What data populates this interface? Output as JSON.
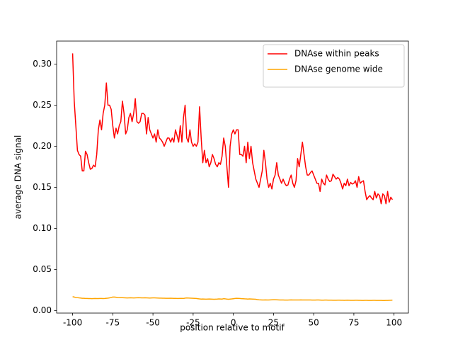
{
  "chart_data": {
    "type": "line",
    "xlabel": "position relative to motif",
    "ylabel": "average DNA signal",
    "x": [
      -100,
      -99,
      -98,
      -97,
      -96,
      -95,
      -94,
      -93,
      -92,
      -91,
      -90,
      -89,
      -88,
      -87,
      -86,
      -85,
      -84,
      -83,
      -82,
      -81,
      -80,
      -79,
      -78,
      -77,
      -76,
      -75,
      -74,
      -73,
      -72,
      -71,
      -70,
      -69,
      -68,
      -67,
      -66,
      -65,
      -64,
      -63,
      -62,
      -61,
      -60,
      -59,
      -58,
      -57,
      -56,
      -55,
      -54,
      -53,
      -52,
      -51,
      -50,
      -49,
      -48,
      -47,
      -46,
      -45,
      -44,
      -43,
      -42,
      -41,
      -40,
      -39,
      -38,
      -37,
      -36,
      -35,
      -34,
      -33,
      -32,
      -31,
      -30,
      -29,
      -28,
      -27,
      -26,
      -25,
      -24,
      -23,
      -22,
      -21,
      -20,
      -19,
      -18,
      -17,
      -16,
      -15,
      -14,
      -13,
      -12,
      -11,
      -10,
      -9,
      -8,
      -7,
      -6,
      -5,
      -4,
      -3,
      -2,
      -1,
      0,
      1,
      2,
      3,
      4,
      5,
      6,
      7,
      8,
      9,
      10,
      11,
      12,
      13,
      14,
      15,
      16,
      17,
      18,
      19,
      20,
      21,
      22,
      23,
      24,
      25,
      26,
      27,
      28,
      29,
      30,
      31,
      32,
      33,
      34,
      35,
      36,
      37,
      38,
      39,
      40,
      41,
      42,
      43,
      44,
      45,
      46,
      47,
      48,
      49,
      50,
      51,
      52,
      53,
      54,
      55,
      56,
      57,
      58,
      59,
      60,
      61,
      62,
      63,
      64,
      65,
      66,
      67,
      68,
      69,
      70,
      71,
      72,
      73,
      74,
      75,
      76,
      77,
      78,
      79,
      80,
      81,
      82,
      83,
      84,
      85,
      86,
      87,
      88,
      89,
      90,
      91,
      92,
      93,
      94,
      95,
      96,
      97,
      98,
      99
    ],
    "series": [
      {
        "name": "DNAse within peaks",
        "color": "#ff0000",
        "values": [
          0.313,
          0.255,
          0.225,
          0.195,
          0.19,
          0.188,
          0.17,
          0.17,
          0.194,
          0.19,
          0.18,
          0.172,
          0.173,
          0.177,
          0.175,
          0.19,
          0.22,
          0.232,
          0.22,
          0.24,
          0.25,
          0.277,
          0.25,
          0.25,
          0.245,
          0.225,
          0.21,
          0.222,
          0.215,
          0.225,
          0.23,
          0.255,
          0.24,
          0.215,
          0.22,
          0.235,
          0.24,
          0.23,
          0.24,
          0.258,
          0.23,
          0.228,
          0.23,
          0.24,
          0.24,
          0.238,
          0.215,
          0.235,
          0.22,
          0.215,
          0.21,
          0.215,
          0.205,
          0.22,
          0.21,
          0.208,
          0.205,
          0.2,
          0.205,
          0.21,
          0.21,
          0.205,
          0.21,
          0.205,
          0.22,
          0.213,
          0.205,
          0.225,
          0.205,
          0.235,
          0.25,
          0.21,
          0.205,
          0.22,
          0.205,
          0.2,
          0.203,
          0.2,
          0.205,
          0.248,
          0.21,
          0.18,
          0.195,
          0.18,
          0.185,
          0.175,
          0.18,
          0.19,
          0.185,
          0.178,
          0.175,
          0.18,
          0.178,
          0.188,
          0.21,
          0.2,
          0.175,
          0.15,
          0.2,
          0.215,
          0.22,
          0.215,
          0.22,
          0.22,
          0.19,
          0.19,
          0.188,
          0.2,
          0.18,
          0.205,
          0.185,
          0.2,
          0.18,
          0.17,
          0.16,
          0.155,
          0.15,
          0.16,
          0.17,
          0.195,
          0.18,
          0.16,
          0.15,
          0.155,
          0.148,
          0.16,
          0.165,
          0.18,
          0.165,
          0.16,
          0.155,
          0.16,
          0.155,
          0.152,
          0.153,
          0.16,
          0.165,
          0.155,
          0.15,
          0.158,
          0.185,
          0.175,
          0.19,
          0.205,
          0.19,
          0.175,
          0.165,
          0.165,
          0.168,
          0.17,
          0.165,
          0.16,
          0.155,
          0.155,
          0.145,
          0.16,
          0.155,
          0.153,
          0.165,
          0.16,
          0.157,
          0.158,
          0.166,
          0.163,
          0.16,
          0.162,
          0.16,
          0.155,
          0.148,
          0.155,
          0.152,
          0.16,
          0.152,
          0.156,
          0.154,
          0.155,
          0.158,
          0.15,
          0.163,
          0.155,
          0.157,
          0.158,
          0.145,
          0.135,
          0.138,
          0.14,
          0.137,
          0.135,
          0.145,
          0.137,
          0.142,
          0.14,
          0.13,
          0.142,
          0.14,
          0.13,
          0.145,
          0.132,
          0.138,
          0.135
        ]
      },
      {
        "name": "DNAse genome wide",
        "color": "#ffa500",
        "values": [
          0.017,
          0.0165,
          0.016,
          0.0158,
          0.0155,
          0.0153,
          0.015,
          0.015,
          0.0148,
          0.0148,
          0.0147,
          0.0147,
          0.0146,
          0.0147,
          0.0148,
          0.0147,
          0.0147,
          0.0148,
          0.0148,
          0.0147,
          0.0148,
          0.015,
          0.0152,
          0.0155,
          0.016,
          0.0165,
          0.0165,
          0.0163,
          0.016,
          0.0158,
          0.0157,
          0.0157,
          0.0156,
          0.0155,
          0.0154,
          0.0155,
          0.0156,
          0.0155,
          0.0154,
          0.0155,
          0.0156,
          0.0157,
          0.0156,
          0.0155,
          0.0155,
          0.0156,
          0.0155,
          0.0154,
          0.0153,
          0.0154,
          0.0155,
          0.0155,
          0.0154,
          0.0153,
          0.0152,
          0.0152,
          0.0151,
          0.0151,
          0.015,
          0.015,
          0.015,
          0.0151,
          0.015,
          0.0149,
          0.0149,
          0.0148,
          0.0148,
          0.0149,
          0.0149,
          0.0148,
          0.0152,
          0.0154,
          0.0153,
          0.0152,
          0.0151,
          0.015,
          0.0149,
          0.0148,
          0.0145,
          0.0142,
          0.014,
          0.0141,
          0.014,
          0.0139,
          0.014,
          0.0141,
          0.014,
          0.0139,
          0.0138,
          0.0139,
          0.014,
          0.0142,
          0.0141,
          0.014,
          0.0145,
          0.0143,
          0.014,
          0.0138,
          0.014,
          0.0142,
          0.0145,
          0.0148,
          0.015,
          0.0149,
          0.0148,
          0.0146,
          0.0145,
          0.0143,
          0.0142,
          0.014,
          0.0142,
          0.0141,
          0.014,
          0.0139,
          0.0138,
          0.0134,
          0.0132,
          0.0131,
          0.013,
          0.013,
          0.0131,
          0.013,
          0.013,
          0.0131,
          0.0132,
          0.0133,
          0.0133,
          0.0132,
          0.0131,
          0.013,
          0.013,
          0.0129,
          0.0128,
          0.0128,
          0.0128,
          0.013,
          0.0131,
          0.013,
          0.0129,
          0.0129,
          0.013,
          0.013,
          0.0131,
          0.013,
          0.0129,
          0.0129,
          0.013,
          0.013,
          0.0129,
          0.0128,
          0.0128,
          0.0128,
          0.0129,
          0.0129,
          0.0128,
          0.0127,
          0.0127,
          0.0128,
          0.0128,
          0.0127,
          0.0127,
          0.0127,
          0.0126,
          0.0126,
          0.0126,
          0.0127,
          0.0127,
          0.0126,
          0.0126,
          0.0125,
          0.0126,
          0.0127,
          0.0126,
          0.0125,
          0.0125,
          0.0125,
          0.0126,
          0.0126,
          0.0125,
          0.0125,
          0.0124,
          0.0124,
          0.0125,
          0.0125,
          0.0124,
          0.0124,
          0.0124,
          0.0125,
          0.0125,
          0.0124,
          0.0124,
          0.0124,
          0.0124,
          0.0123,
          0.0123,
          0.0124,
          0.0124,
          0.0125,
          0.0126,
          0.0127
        ]
      }
    ],
    "xlim": [
      -109.95,
      108.95
    ],
    "xticks": [
      -100,
      -75,
      -50,
      -25,
      0,
      25,
      50,
      75,
      100
    ],
    "ylim": [
      -0.003,
      0.328
    ],
    "yticks": [
      {
        "value": 0,
        "label": "0.00"
      },
      {
        "value": 0.05,
        "label": "0.05"
      },
      {
        "value": 0.1,
        "label": "0.10"
      },
      {
        "value": 0.15,
        "label": "0.15"
      },
      {
        "value": 0.2,
        "label": "0.20"
      },
      {
        "value": 0.25,
        "label": "0.25"
      },
      {
        "value": 0.3,
        "label": "0.30"
      }
    ],
    "legend": "upper right"
  }
}
